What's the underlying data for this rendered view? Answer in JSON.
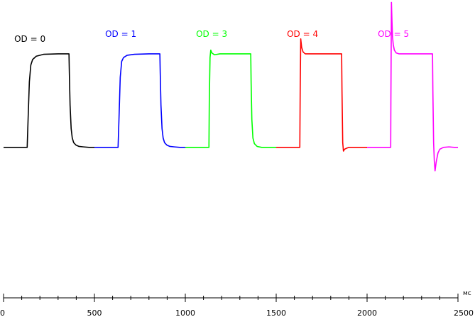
{
  "chart_data": {
    "type": "line",
    "xlabel": "",
    "ylabel": "",
    "unit": "мс",
    "xlim": [
      0,
      2500
    ],
    "x_ticks": [
      "0",
      "500",
      "1000",
      "1500",
      "2000",
      "2500"
    ],
    "ylim": [
      -0.32,
      1.5
    ],
    "grid": false,
    "series": [
      {
        "name": "OD = 0",
        "color": "#000000",
        "x": [
          0,
          130,
          135,
          142,
          150,
          160,
          180,
          220,
          300,
          360,
          362,
          366,
          372,
          378,
          386,
          398,
          415,
          440,
          470,
          500
        ],
        "y": [
          0,
          0,
          0.3,
          0.7,
          0.88,
          0.94,
          0.975,
          0.995,
          1.0,
          1.0,
          0.8,
          0.45,
          0.2,
          0.1,
          0.05,
          0.025,
          0.01,
          0.005,
          0.0,
          0.0
        ]
      },
      {
        "name": "OD = 1",
        "color": "#0000ff",
        "x": [
          500,
          630,
          635,
          642,
          650,
          660,
          680,
          720,
          800,
          860,
          862,
          866,
          872,
          878,
          886,
          898,
          915,
          940,
          970,
          1000
        ],
        "y": [
          0,
          0,
          0.3,
          0.75,
          0.92,
          0.96,
          0.985,
          0.995,
          1.0,
          1.0,
          0.8,
          0.45,
          0.2,
          0.1,
          0.05,
          0.025,
          0.01,
          0.005,
          0.0,
          0.0
        ]
      },
      {
        "name": "OD = 3",
        "color": "#00ff00",
        "x": [
          1000,
          1130,
          1132,
          1136,
          1140,
          1146,
          1160,
          1190,
          1250,
          1300,
          1360,
          1362,
          1366,
          1372,
          1380,
          1395,
          1420,
          1460,
          1500
        ],
        "y": [
          0,
          0,
          0.5,
          0.96,
          1.04,
          1.01,
          0.99,
          1.0,
          1.0,
          1.0,
          1.0,
          0.7,
          0.3,
          0.1,
          0.04,
          0.01,
          0.0,
          0.0,
          0.0
        ]
      },
      {
        "name": "OD = 4",
        "color": "#ff0000",
        "x": [
          1500,
          1630,
          1632,
          1635,
          1640,
          1648,
          1660,
          1690,
          1750,
          1800,
          1860,
          1862,
          1866,
          1870,
          1876,
          1886,
          1900,
          1930,
          1960,
          2000
        ],
        "y": [
          0,
          0,
          0.6,
          1.16,
          1.07,
          1.02,
          1.0,
          1.0,
          1.0,
          1.0,
          1.0,
          0.6,
          0.05,
          -0.04,
          -0.02,
          -0.01,
          0.0,
          0.0,
          0.0,
          0.0
        ]
      },
      {
        "name": "OD = 5",
        "color": "#ff00ff",
        "x": [
          2000,
          2130,
          2131,
          2134,
          2137,
          2140,
          2144,
          2150,
          2160,
          2175,
          2200,
          2250,
          2300,
          2360,
          2362,
          2366,
          2370,
          2374,
          2380,
          2390,
          2400,
          2420,
          2450,
          2480,
          2500
        ],
        "y": [
          0,
          0,
          0.5,
          1.55,
          1.35,
          1.18,
          1.1,
          1.04,
          1.01,
          1.0,
          1.0,
          1.0,
          1.0,
          1.0,
          0.6,
          0.05,
          -0.15,
          -0.25,
          -0.16,
          -0.06,
          -0.02,
          0.0,
          0.005,
          0.0,
          0.0
        ]
      }
    ]
  }
}
